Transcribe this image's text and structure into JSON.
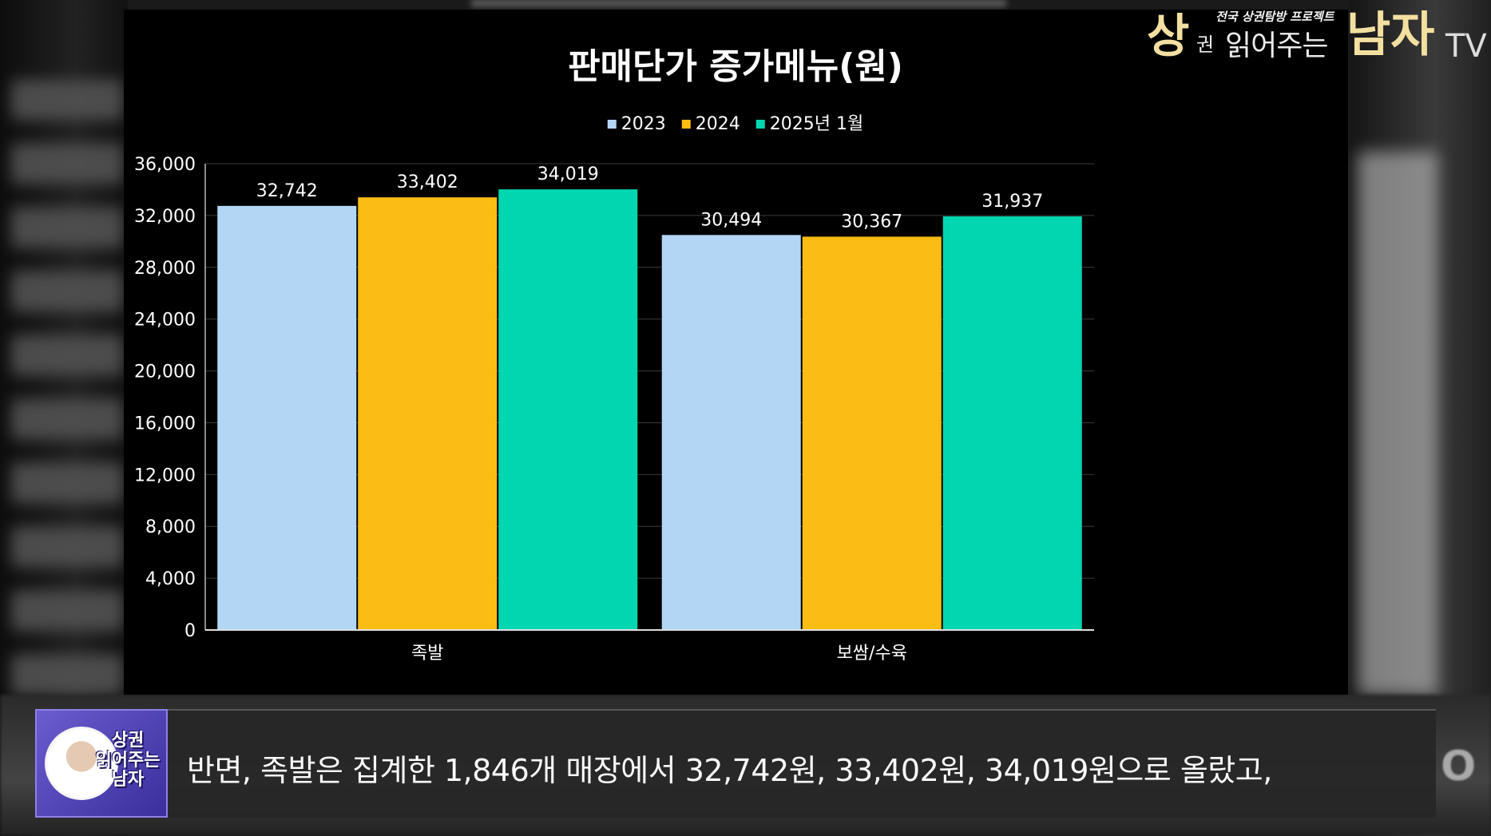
{
  "chart_data": {
    "type": "bar",
    "title": "판매단가 증가메뉴(원)",
    "categories": [
      "족발",
      "보쌈/수육"
    ],
    "series": [
      {
        "name": "2023",
        "color": "#b3d6f5",
        "values": [
          32742,
          30494
        ]
      },
      {
        "name": "2024",
        "color": "#fbbc14",
        "values": [
          33402,
          30367
        ]
      },
      {
        "name": "2025년 1월",
        "color": "#00d6b0",
        "values": [
          34019,
          31937
        ]
      }
    ],
    "data_labels": [
      [
        "32,742",
        "33,402",
        "34,019"
      ],
      [
        "30,494",
        "30,367",
        "31,937"
      ]
    ],
    "yticks": [
      0,
      4000,
      8000,
      12000,
      16000,
      20000,
      24000,
      28000,
      32000,
      36000
    ],
    "ytick_labels": [
      "0",
      "4,000",
      "8,000",
      "12,000",
      "16,000",
      "20,000",
      "24,000",
      "28,000",
      "32,000",
      "36,000"
    ],
    "ylim": [
      0,
      36000
    ],
    "xlabel": "",
    "ylabel": "",
    "grid": true,
    "legend_position": "top"
  },
  "logo": {
    "tagline": "전국 상권탐방 프로젝트",
    "sang": "상",
    "gwon": "권",
    "read": "읽어주는",
    "namja": "남자",
    "tv": "TV"
  },
  "caption": {
    "avatar_line1": "상권",
    "avatar_line2": "읽어주는",
    "avatar_line3": "남자",
    "text": "반면, 족발은 집계한 1,846개 매장에서 32,742원, 33,402원, 34,019원으로 올랐고,"
  },
  "colors": {
    "panel_bg": "#000000",
    "gridline": "#3a3a3a",
    "text": "#ffffff",
    "logo_gold": "#f3dfa0"
  }
}
